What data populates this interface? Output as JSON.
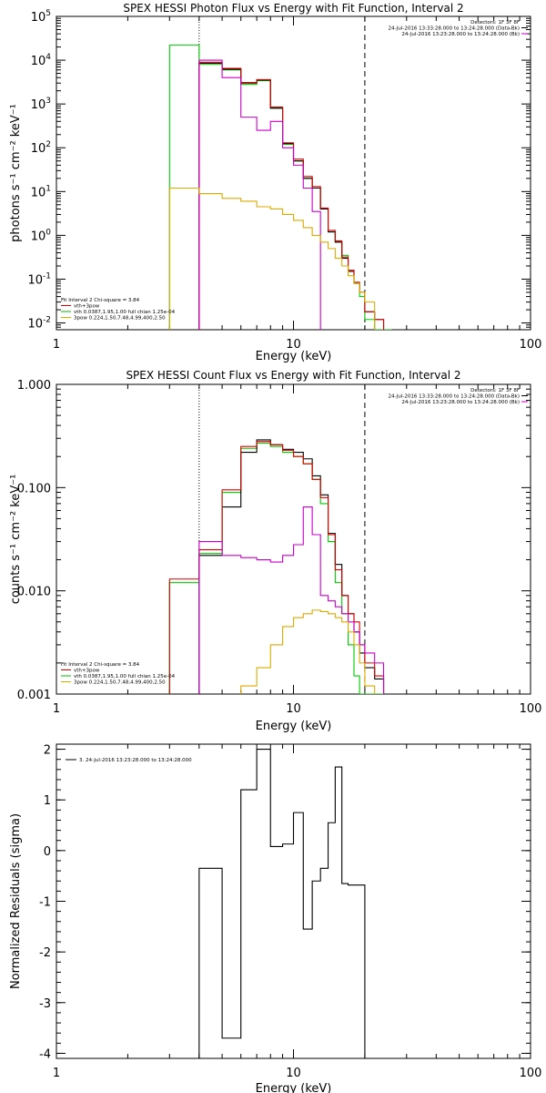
{
  "chart_data": [
    {
      "type": "line",
      "title": "SPEX HESSI Photon Flux vs Energy with Fit Function, Interval 2",
      "xlabel": "Energy (keV)",
      "ylabel": "photons s⁻¹ cm⁻² keV⁻¹",
      "xscale": "log",
      "yscale": "log",
      "xlim": [
        1,
        100
      ],
      "ylim": [
        0.007,
        100000
      ],
      "xticks": [
        {
          "v": 1,
          "t": "1"
        },
        {
          "v": 10,
          "t": "10"
        },
        {
          "v": 100,
          "t": "100"
        }
      ],
      "yticks": [
        {
          "v": 0.01,
          "b": "10",
          "e": "-2"
        },
        {
          "v": 0.1,
          "b": "10",
          "e": "-1"
        },
        {
          "v": 1,
          "b": "10",
          "e": "0"
        },
        {
          "v": 10,
          "b": "10",
          "e": "1"
        },
        {
          "v": 100,
          "b": "10",
          "e": "2"
        },
        {
          "v": 1000,
          "b": "10",
          "e": "3"
        },
        {
          "v": 10000,
          "b": "10",
          "e": "4"
        },
        {
          "v": 100000,
          "b": "10",
          "e": "5"
        }
      ],
      "vlines": [
        {
          "x": 4.0,
          "style": "dotted"
        },
        {
          "x": 20.0,
          "style": "dashed"
        }
      ],
      "legend_top_right": [
        {
          "text": "Detectors: 1F 3F 8F",
          "color": "#000000"
        },
        {
          "text": "24-Jul-2016 13:33:28.000 to 13:24:28.000 (Data-Bk)",
          "color": "#000000"
        },
        {
          "text": "24-Jul-2016 13:23:28.000 to 13:24:28.000 (Bk)",
          "color": "#cc00cc"
        }
      ],
      "legend_bottom_left": [
        {
          "text": "Fit Interval 2   Chi-square = 3.84",
          "color": "#000000"
        },
        {
          "text": "vth+3pow",
          "color": "#dd0000"
        },
        {
          "text": "vth 0.0387,1.95,1.00  full chian 1.25e-04",
          "color": "#00bb00"
        },
        {
          "text": "3pow 0.224,1.50,7.48,4.99,400,2.50",
          "color": "#ddaa00"
        }
      ],
      "series": [
        {
          "color": "#00cc00",
          "edges": [
            3,
            4,
            5,
            6,
            7,
            8,
            9,
            10,
            11,
            12,
            13,
            14,
            15,
            16,
            17,
            18,
            19,
            20,
            22,
            24,
            26
          ],
          "values": [
            22000,
            8000,
            6000,
            2800,
            3400,
            800,
            120,
            50,
            20,
            12,
            4,
            1.2,
            0.7,
            0.35,
            0.15,
            0.08,
            0.04,
            0.012,
            0.007,
            0.007
          ]
        },
        {
          "color": "#000000",
          "edges": [
            4,
            5,
            6,
            7,
            8,
            9,
            10,
            11,
            12,
            13,
            14,
            15,
            16,
            17,
            18,
            19,
            20,
            22,
            24
          ],
          "values": [
            8500,
            6200,
            3000,
            3500,
            800,
            125,
            50,
            20,
            12,
            4,
            1.2,
            0.7,
            0.3,
            0.15,
            0.08,
            0.05,
            0.018,
            0.012
          ]
        },
        {
          "color": "#dd0000",
          "edges": [
            4,
            5,
            6,
            7,
            8,
            9,
            10,
            11,
            12,
            13,
            14,
            15,
            16,
            17,
            18,
            19,
            20,
            22,
            24
          ],
          "values": [
            9000,
            6500,
            3100,
            3600,
            850,
            130,
            55,
            22,
            13,
            4.2,
            1.3,
            0.75,
            0.32,
            0.16,
            0.085,
            0.05,
            0.018,
            0.012
          ]
        },
        {
          "color": "#cc00cc",
          "edges": [
            4,
            5,
            6,
            7,
            8,
            9,
            10,
            11,
            12,
            13
          ],
          "values": [
            10000,
            4000,
            500,
            250,
            400,
            100,
            40,
            12,
            3.5
          ]
        },
        {
          "color": "#ddaa00",
          "edges": [
            3,
            4,
            5,
            6,
            7,
            8,
            9,
            10,
            11,
            12,
            13,
            14,
            15,
            16,
            17,
            18,
            19,
            20,
            22
          ],
          "values": [
            12,
            9,
            7,
            6,
            4.5,
            4,
            3,
            2.2,
            1.5,
            1,
            0.7,
            0.5,
            0.3,
            0.2,
            0.12,
            0.08,
            0.05,
            0.03
          ]
        }
      ]
    },
    {
      "type": "line",
      "title": "SPEX HESSI Count Flux vs Energy with Fit Function, Interval 2",
      "xlabel": "Energy (keV)",
      "ylabel": "counts s⁻¹ cm⁻² keV⁻¹",
      "xscale": "log",
      "yscale": "log",
      "xlim": [
        1,
        100
      ],
      "ylim": [
        0.001,
        1
      ],
      "xticks": [
        {
          "v": 1,
          "t": "1"
        },
        {
          "v": 10,
          "t": "10"
        },
        {
          "v": 100,
          "t": "100"
        }
      ],
      "yticks": [
        {
          "v": 0.001,
          "t": "0.001"
        },
        {
          "v": 0.01,
          "t": "0.010"
        },
        {
          "v": 0.1,
          "t": "0.100"
        },
        {
          "v": 1,
          "t": "1.000"
        }
      ],
      "vlines": [
        {
          "x": 4.0,
          "style": "dotted"
        },
        {
          "x": 20.0,
          "style": "dashed"
        }
      ],
      "legend_top_right": [
        {
          "text": "Detectors: 1F 3F 8F",
          "color": "#000000"
        },
        {
          "text": "24-Jul-2016 13:33:28.000 to 13:24:28.000 (Data-Bk)",
          "color": "#000000"
        },
        {
          "text": "24-Jul-2016 13:23:28.000 to 13:24:28.000 (Bk)",
          "color": "#cc00cc"
        }
      ],
      "legend_bottom_left": [
        {
          "text": "Fit Interval 2   Chi-square = 3.84",
          "color": "#000000"
        },
        {
          "text": "vth+3pow",
          "color": "#dd0000"
        },
        {
          "text": "vth 0.0387,1.95,1.00  full chian 1.25e-04",
          "color": "#00bb00"
        },
        {
          "text": "3pow 0.224,1.50,7.48,4.99,400,2.50",
          "color": "#ddaa00"
        }
      ],
      "series": [
        {
          "color": "#00cc00",
          "edges": [
            3,
            4,
            5,
            6,
            7,
            8,
            9,
            10,
            11,
            12,
            13,
            14,
            15,
            16,
            17,
            18,
            19,
            20,
            22,
            24
          ],
          "values": [
            0.012,
            0.023,
            0.09,
            0.24,
            0.27,
            0.25,
            0.22,
            0.2,
            0.17,
            0.12,
            0.07,
            0.03,
            0.012,
            0.006,
            0.003,
            0.0015,
            0.001,
            0.001,
            0.001
          ]
        },
        {
          "color": "#000000",
          "edges": [
            4,
            5,
            6,
            7,
            8,
            9,
            10,
            11,
            12,
            13,
            14,
            15,
            16,
            17,
            18,
            19,
            20,
            22,
            24
          ],
          "values": [
            0.022,
            0.065,
            0.22,
            0.29,
            0.26,
            0.235,
            0.22,
            0.19,
            0.13,
            0.085,
            0.036,
            0.018,
            0.009,
            0.006,
            0.004,
            0.0025,
            0.0018,
            0.0014
          ]
        },
        {
          "color": "#dd0000",
          "edges": [
            3,
            4,
            5,
            6,
            7,
            8,
            9,
            10,
            11,
            12,
            13,
            14,
            15,
            16,
            17,
            18,
            19,
            20,
            22,
            24
          ],
          "values": [
            0.013,
            0.025,
            0.095,
            0.25,
            0.28,
            0.26,
            0.23,
            0.2,
            0.17,
            0.12,
            0.08,
            0.035,
            0.016,
            0.009,
            0.006,
            0.005,
            0.003,
            0.002,
            0.0015
          ]
        },
        {
          "color": "#cc00cc",
          "edges": [
            4,
            5,
            6,
            7,
            8,
            9,
            10,
            11,
            12,
            13,
            14,
            15,
            16,
            17,
            18,
            19,
            20,
            22,
            24
          ],
          "values": [
            0.03,
            0.022,
            0.021,
            0.02,
            0.019,
            0.022,
            0.028,
            0.065,
            0.035,
            0.009,
            0.008,
            0.007,
            0.006,
            0.005,
            0.004,
            0.003,
            0.0025,
            0.002
          ]
        },
        {
          "color": "#ddaa00",
          "edges": [
            6,
            7,
            8,
            9,
            10,
            11,
            12,
            13,
            14,
            15,
            16,
            17,
            18,
            19,
            20,
            22
          ],
          "values": [
            0.0012,
            0.0018,
            0.003,
            0.0045,
            0.0055,
            0.006,
            0.0065,
            0.0063,
            0.006,
            0.0055,
            0.005,
            0.004,
            0.003,
            0.002,
            0.0012
          ]
        }
      ]
    },
    {
      "type": "line",
      "title": "",
      "xlabel": "Energy (keV)",
      "ylabel": "Normalized Residuals (sigma)",
      "xscale": "log",
      "yscale": "linear",
      "xlim": [
        1,
        100
      ],
      "ylim": [
        -4.1,
        2.1
      ],
      "xticks": [
        {
          "v": 1,
          "t": "1"
        },
        {
          "v": 10,
          "t": "10"
        },
        {
          "v": 100,
          "t": "100"
        }
      ],
      "yticks": [
        {
          "v": -4,
          "t": "-4"
        },
        {
          "v": -3,
          "t": "-3"
        },
        {
          "v": -2,
          "t": "-2"
        },
        {
          "v": -1,
          "t": "-1"
        },
        {
          "v": 0,
          "t": "0"
        },
        {
          "v": 1,
          "t": "1"
        },
        {
          "v": 2,
          "t": "2"
        }
      ],
      "vlines": [],
      "legend_top_left": [
        {
          "text": "3. 24-Jul-2016 13:23:28.000 to 13:24:28.000",
          "color": "#000000"
        }
      ],
      "series": [
        {
          "color": "#000000",
          "edges": [
            4,
            5,
            6,
            7,
            8,
            9,
            10,
            11,
            12,
            13,
            14,
            15,
            16,
            17,
            18,
            19,
            20
          ],
          "values": [
            -0.35,
            -3.7,
            1.2,
            2.0,
            0.08,
            0.13,
            0.75,
            -1.55,
            -0.6,
            -0.35,
            0.55,
            1.65,
            -0.65,
            -0.68,
            -0.68,
            -0.68
          ],
          "drop_to_floor": true
        }
      ]
    }
  ]
}
